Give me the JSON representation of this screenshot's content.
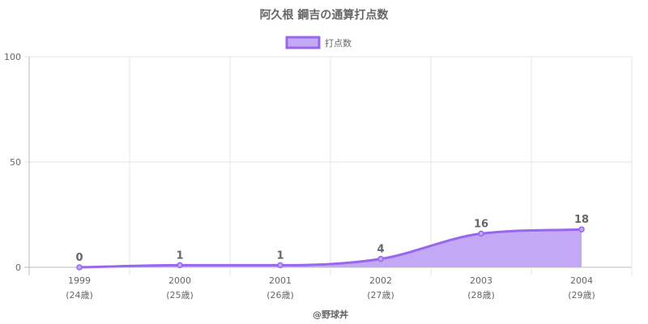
{
  "chart_data": {
    "type": "area",
    "title": "阿久根 鋼吉の通算打点数",
    "categories": [
      "1999",
      "2000",
      "2001",
      "2002",
      "2003",
      "2004"
    ],
    "category_sublabels": [
      "(24歳)",
      "(25歳)",
      "(26歳)",
      "(27歳)",
      "(28歳)",
      "(29歳)"
    ],
    "series": [
      {
        "name": "打点数",
        "values": [
          0,
          1,
          1,
          4,
          16,
          18
        ]
      }
    ],
    "ylim": [
      0,
      100
    ],
    "yticks": [
      0,
      50,
      100
    ],
    "xlabel": "@野球丼",
    "ylabel": "",
    "grid": true,
    "legend_position": "top-center",
    "colors": {
      "line": "#9966ee",
      "fill": "#c3a8f6",
      "text": "#666666",
      "grid": "#e6e6e6"
    }
  }
}
